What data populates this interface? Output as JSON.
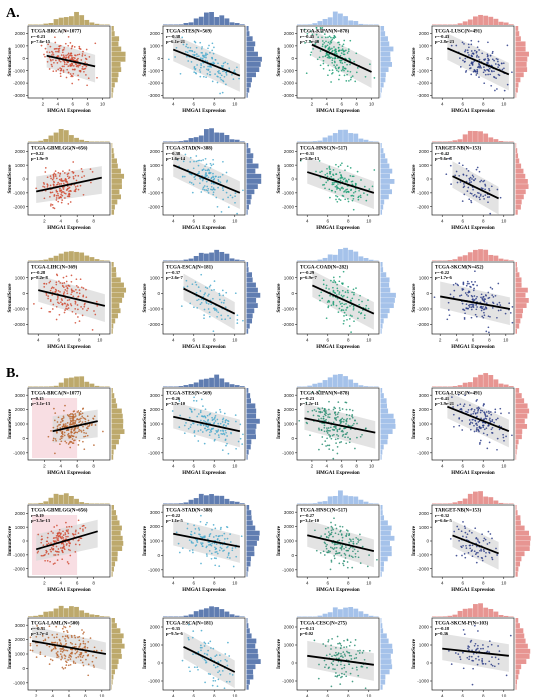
{
  "figure": {
    "panel_labels": [
      "A.",
      "B."
    ],
    "x_label": "HMGA1 Expression",
    "y_labels": {
      "A": "StromalScore",
      "B": "ImmuneScore"
    },
    "colors": {
      "brown": "#b6a05c",
      "blue": "#4f6fa8",
      "teal": "#3fa4c4",
      "green": "#1a9a6e",
      "navy": "#283a7a",
      "red": "#cf4a3a",
      "lightblue": "#9bbbe8",
      "salmon": "#e48a86"
    }
  },
  "chart_data": [
    {
      "panel": "A",
      "type": "scatter",
      "title": "TCGA-BRCA(N=1077)",
      "stats": [
        "r=-0.23",
        "p=7.6e-15"
      ],
      "color": "red",
      "histx": "brown",
      "histy": "brown",
      "xticks": [
        2,
        4,
        6,
        8,
        10
      ],
      "yticks": [
        -3000,
        -2000,
        -1000,
        0,
        1000,
        2000
      ],
      "xlim": [
        0,
        11
      ],
      "ylim": [
        -3200,
        2600
      ],
      "cx": 5.5,
      "sx": 1.6,
      "line": {
        "x": [
          2.5,
          9
        ],
        "y": [
          200,
          -650
        ]
      },
      "spread": 700,
      "n": 200
    },
    {
      "panel": "A",
      "type": "scatter",
      "title": "TCGA-STES(N=569)",
      "stats": [
        "r=-0.38",
        "p=6.1e-21"
      ],
      "color": "teal",
      "histx": "blue",
      "histy": "blue",
      "xticks": [
        4,
        6,
        8,
        10
      ],
      "yticks": [
        -3000,
        -2000,
        -1000,
        0,
        1000,
        2000
      ],
      "xlim": [
        3,
        11
      ],
      "ylim": [
        -3200,
        2600
      ],
      "cx": 7.5,
      "sx": 1.3,
      "line": {
        "x": [
          4,
          10.5
        ],
        "y": [
          700,
          -1400
        ]
      },
      "spread": 700,
      "n": 150
    },
    {
      "panel": "A",
      "type": "scatter",
      "title": "TCGA-KIPAN(N=878)",
      "stats": [
        "r=-0.45",
        "p=7.7e-46"
      ],
      "color": "green",
      "histx": "lightblue",
      "histy": "lightblue",
      "xticks": [
        2,
        4,
        6,
        8,
        10
      ],
      "yticks": [
        -3000,
        -2000,
        -1000,
        0,
        1000,
        2000
      ],
      "xlim": [
        0,
        11
      ],
      "ylim": [
        -3200,
        2600
      ],
      "cx": 5.0,
      "sx": 1.6,
      "line": {
        "x": [
          2,
          10
        ],
        "y": [
          1100,
          -1100
        ]
      },
      "spread": 800,
      "n": 200
    },
    {
      "panel": "A",
      "type": "scatter",
      "title": "TCGA-LUSC(N=491)",
      "stats": [
        "r=-0.43",
        "p=2.8e-23"
      ],
      "color": "navy",
      "histx": "salmon",
      "histy": "salmon",
      "xticks": [
        4,
        6,
        8,
        10
      ],
      "yticks": [
        -3000,
        -2000,
        -1000,
        0,
        1000,
        2000
      ],
      "xlim": [
        3,
        11
      ],
      "ylim": [
        -3200,
        2600
      ],
      "cx": 7.8,
      "sx": 1.2,
      "line": {
        "x": [
          4.5,
          10.5
        ],
        "y": [
          800,
          -1300
        ]
      },
      "spread": 650,
      "n": 150
    },
    {
      "panel": "A",
      "type": "scatter",
      "title": "TCGA-GBMLGG(N=656)",
      "stats": [
        "r=0.22",
        "p=1.9e-9"
      ],
      "color": "red",
      "histx": "brown",
      "histy": "brown",
      "xticks": [
        2,
        4,
        6,
        8
      ],
      "yticks": [
        -2000,
        -1000,
        0,
        1000,
        2000
      ],
      "xlim": [
        0,
        10
      ],
      "ylim": [
        -2600,
        2600
      ],
      "cx": 4.0,
      "sx": 1.3,
      "line": {
        "x": [
          1,
          9
        ],
        "y": [
          -900,
          100
        ]
      },
      "spread": 600,
      "n": 170
    },
    {
      "panel": "A",
      "type": "scatter",
      "title": "TCGA-STAD(N=388)",
      "stats": [
        "r=-0.38",
        "p=1.6e-14"
      ],
      "color": "teal",
      "histx": "blue",
      "histy": "blue",
      "xticks": [
        4,
        6,
        8,
        10
      ],
      "yticks": [
        -2000,
        -1000,
        0,
        1000,
        2000
      ],
      "xlim": [
        3,
        11
      ],
      "ylim": [
        -2600,
        2600
      ],
      "cx": 7.5,
      "sx": 1.3,
      "line": {
        "x": [
          4,
          10.5
        ],
        "y": [
          1000,
          -1000
        ]
      },
      "spread": 700,
      "n": 140
    },
    {
      "panel": "A",
      "type": "scatter",
      "title": "TCGA-HNSC(N=517)",
      "stats": [
        "r=-0.31",
        "p=5.8e-13"
      ],
      "color": "green",
      "histx": "lightblue",
      "histy": "lightblue",
      "xticks": [
        4,
        6,
        8,
        10
      ],
      "yticks": [
        -2000,
        -1000,
        0,
        1000,
        2000
      ],
      "xlim": [
        3,
        11
      ],
      "ylim": [
        -2600,
        2600
      ],
      "cx": 7.3,
      "sx": 1.2,
      "line": {
        "x": [
          4,
          10.5
        ],
        "y": [
          500,
          -1000
        ]
      },
      "spread": 650,
      "n": 150
    },
    {
      "panel": "A",
      "type": "scatter",
      "title": "TARGET-NB(N=153)",
      "stats": [
        "r=-0.42",
        "p=9.6e-8"
      ],
      "color": "navy",
      "histx": "salmon",
      "histy": "salmon",
      "xticks": [
        4,
        6,
        8,
        10
      ],
      "yticks": [
        -2000,
        -1000,
        0,
        1000,
        2000
      ],
      "xlim": [
        3,
        11
      ],
      "ylim": [
        -2600,
        2600
      ],
      "cx": 7.2,
      "sx": 1.1,
      "line": {
        "x": [
          5,
          9.5
        ],
        "y": [
          200,
          -1400
        ]
      },
      "spread": 600,
      "n": 80
    },
    {
      "panel": "A",
      "type": "scatter",
      "title": "TCGA-LIHC(N=369)",
      "stats": [
        "r=-0.28",
        "p=8.2e-8"
      ],
      "color": "red",
      "histx": "brown",
      "histy": "brown",
      "xticks": [
        4,
        6,
        8,
        10
      ],
      "yticks": [
        -2000,
        -1000,
        0,
        1000
      ],
      "xlim": [
        3,
        11
      ],
      "ylim": [
        -2600,
        2000
      ],
      "cx": 7.0,
      "sx": 1.3,
      "line": {
        "x": [
          4,
          10.5
        ],
        "y": [
          200,
          -800
        ]
      },
      "spread": 650,
      "n": 140
    },
    {
      "panel": "A",
      "type": "scatter",
      "title": "TCGA-ESCA(N=181)",
      "stats": [
        "r=-0.37",
        "p=2.6e-7"
      ],
      "color": "teal",
      "histx": "blue",
      "histy": "blue",
      "xticks": [
        4,
        6,
        8,
        10
      ],
      "yticks": [
        -2000,
        -1000,
        0,
        1000
      ],
      "xlim": [
        3,
        11
      ],
      "ylim": [
        -2600,
        2000
      ],
      "cx": 7.6,
      "sx": 1.2,
      "line": {
        "x": [
          5,
          10
        ],
        "y": [
          300,
          -1300
        ]
      },
      "spread": 650,
      "n": 80
    },
    {
      "panel": "A",
      "type": "scatter",
      "title": "TCGA-COAD(N=282)",
      "stats": [
        "r=-0.29",
        "p=6.9e-7"
      ],
      "color": "green",
      "histx": "lightblue",
      "histy": "lightblue",
      "xticks": [
        4,
        6,
        8,
        10
      ],
      "yticks": [
        -2000,
        -1000,
        0,
        1000
      ],
      "xlim": [
        3,
        11
      ],
      "ylim": [
        -2600,
        2000
      ],
      "cx": 7.5,
      "sx": 1.2,
      "line": {
        "x": [
          4.5,
          10.5
        ],
        "y": [
          500,
          -1300
        ]
      },
      "spread": 650,
      "n": 120
    },
    {
      "panel": "A",
      "type": "scatter",
      "title": "TCGA-SKCM(N=452)",
      "stats": [
        "r=-0.22",
        "p=1.7e-6"
      ],
      "color": "navy",
      "histx": "salmon",
      "histy": "salmon",
      "xticks": [
        2,
        4,
        6,
        8,
        10
      ],
      "yticks": [
        -2000,
        -1000,
        0,
        1000
      ],
      "xlim": [
        1,
        11
      ],
      "ylim": [
        -2600,
        2000
      ],
      "cx": 6.5,
      "sx": 1.6,
      "line": {
        "x": [
          2,
          10.5
        ],
        "y": [
          -200,
          -1000
        ]
      },
      "spread": 650,
      "n": 150
    },
    {
      "panel": "B",
      "type": "scatter",
      "title": "TCGA-BRCA(N=1077)",
      "stats": [
        "r=0.15",
        "p=3.1e-13"
      ],
      "color": "brown2",
      "histx": "brown",
      "histy": "brown",
      "xticks": [
        2,
        4,
        6,
        8
      ],
      "yticks": [
        -1000,
        0,
        1000,
        2000,
        3000
      ],
      "xlim": [
        0,
        10
      ],
      "ylim": [
        -1500,
        3500
      ],
      "cx": 5.5,
      "sx": 1.2,
      "line": {
        "x": [
          3,
          8.5
        ],
        "y": [
          500,
          1200
        ]
      },
      "spread": 600,
      "n": 220,
      "shade": "pink"
    },
    {
      "panel": "B",
      "type": "scatter",
      "title": "TCGA-STES(N=569)",
      "stats": [
        "r=-0.26",
        "p=3.7e-10"
      ],
      "color": "teal",
      "histx": "blue",
      "histy": "blue",
      "xticks": [
        4,
        6,
        8,
        10
      ],
      "yticks": [
        -1000,
        0,
        1000,
        2000,
        3000
      ],
      "xlim": [
        3,
        11
      ],
      "ylim": [
        -1500,
        3500
      ],
      "cx": 7.5,
      "sx": 1.3,
      "line": {
        "x": [
          4,
          10.5
        ],
        "y": [
          1500,
          500
        ]
      },
      "spread": 600,
      "n": 150
    },
    {
      "panel": "B",
      "type": "scatter",
      "title": "TCGA-KIPAN(N=878)",
      "stats": [
        "r=-0.23",
        "p=1.2e-11"
      ],
      "color": "green2",
      "histx": "lightblue",
      "histy": "lightblue",
      "xticks": [
        2,
        4,
        6,
        8,
        10
      ],
      "yticks": [
        -1000,
        0,
        1000,
        2000,
        3000
      ],
      "xlim": [
        0,
        11
      ],
      "ylim": [
        -1500,
        3500
      ],
      "cx": 5.0,
      "sx": 1.7,
      "line": {
        "x": [
          1,
          10.5
        ],
        "y": [
          1400,
          400
        ]
      },
      "spread": 700,
      "n": 200
    },
    {
      "panel": "B",
      "type": "scatter",
      "title": "TCGA-LUSC(N=491)",
      "stats": [
        "r=-0.41",
        "p=3.9e-21"
      ],
      "color": "navy",
      "histx": "salmon",
      "histy": "salmon",
      "xticks": [
        4,
        6,
        8,
        10
      ],
      "yticks": [
        -1000,
        0,
        1000,
        2000,
        3000
      ],
      "xlim": [
        3,
        11
      ],
      "ylim": [
        -1500,
        3500
      ],
      "cx": 7.8,
      "sx": 1.2,
      "line": {
        "x": [
          4.5,
          10.5
        ],
        "y": [
          2200,
          500
        ]
      },
      "spread": 650,
      "n": 150
    },
    {
      "panel": "B",
      "type": "scatter",
      "title": "TCGA-GBMLGG(N=656)",
      "stats": [
        "r=0.19",
        "p=3.5e-13"
      ],
      "color": "red",
      "histx": "brown",
      "histy": "brown",
      "xticks": [
        2,
        4,
        6,
        8
      ],
      "yticks": [
        -2000,
        -1000,
        0,
        1000,
        2000
      ],
      "xlim": [
        0,
        10
      ],
      "ylim": [
        -2600,
        2600
      ],
      "cx": 4.0,
      "sx": 1.3,
      "line": {
        "x": [
          1,
          8.5
        ],
        "y": [
          -600,
          700
        ]
      },
      "spread": 600,
      "n": 170,
      "shade": "pink"
    },
    {
      "panel": "B",
      "type": "scatter",
      "title": "TCGA-STAD(N=388)",
      "stats": [
        "r=-0.22",
        "p=1.1e-5"
      ],
      "color": "teal",
      "histx": "blue",
      "histy": "blue",
      "xticks": [
        4,
        6,
        8,
        10
      ],
      "yticks": [
        -1000,
        0,
        1000,
        2000,
        3000
      ],
      "xlim": [
        3,
        11
      ],
      "ylim": [
        -1500,
        3500
      ],
      "cx": 7.5,
      "sx": 1.3,
      "line": {
        "x": [
          4,
          10.5
        ],
        "y": [
          1500,
          600
        ]
      },
      "spread": 650,
      "n": 130
    },
    {
      "panel": "B",
      "type": "scatter",
      "title": "TCGA-HNSC(N=517)",
      "stats": [
        "r=-0.27",
        "p=3.1e-10"
      ],
      "color": "green2",
      "histx": "lightblue",
      "histy": "lightblue",
      "xticks": [
        4,
        6,
        8,
        10
      ],
      "yticks": [
        -1000,
        0,
        1000,
        2000,
        3000
      ],
      "xlim": [
        3,
        11
      ],
      "ylim": [
        -1500,
        3500
      ],
      "cx": 7.3,
      "sx": 1.2,
      "line": {
        "x": [
          4,
          10.5
        ],
        "y": [
          1400,
          300
        ]
      },
      "spread": 650,
      "n": 150
    },
    {
      "panel": "B",
      "type": "scatter",
      "title": "TARGET-NB(N=153)",
      "stats": [
        "r=-0.32",
        "p=6.6e-5"
      ],
      "color": "navy",
      "histx": "salmon",
      "histy": "salmon",
      "xticks": [
        4,
        6,
        8,
        10
      ],
      "yticks": [
        -2000,
        -1000,
        0,
        1000,
        2000
      ],
      "xlim": [
        3,
        11
      ],
      "ylim": [
        -2600,
        2600
      ],
      "cx": 7.2,
      "sx": 1.1,
      "line": {
        "x": [
          5,
          9.5
        ],
        "y": [
          400,
          -900
        ]
      },
      "spread": 600,
      "n": 80
    },
    {
      "panel": "B",
      "type": "scatter",
      "title": "TCGA-LAML(N=500)",
      "stats": [
        "r=-0.31",
        "p=3.7e-4"
      ],
      "color": "brown2",
      "histx": "brown",
      "histy": "brown",
      "xticks": [
        2,
        4,
        6,
        8,
        10
      ],
      "yticks": [
        -1000,
        0,
        1000,
        2000,
        3000
      ],
      "xlim": [
        1,
        11
      ],
      "ylim": [
        -1500,
        3500
      ],
      "cx": 5.5,
      "sx": 1.9,
      "line": {
        "x": [
          1.5,
          10.5
        ],
        "y": [
          1900,
          1000
        ]
      },
      "spread": 650,
      "n": 200
    },
    {
      "panel": "B",
      "type": "scatter",
      "title": "TCGA-ESCA(N=181)",
      "stats": [
        "r=-0.35",
        "p=9.5e-6"
      ],
      "color": "teal",
      "histx": "blue",
      "histy": "blue",
      "xticks": [
        4,
        6,
        8,
        10
      ],
      "yticks": [
        -1000,
        0,
        1000,
        2000
      ],
      "xlim": [
        3,
        11
      ],
      "ylim": [
        -1500,
        2500
      ],
      "cx": 7.6,
      "sx": 1.2,
      "line": {
        "x": [
          5,
          10
        ],
        "y": [
          900,
          -500
        ]
      },
      "spread": 550,
      "n": 80
    },
    {
      "panel": "B",
      "type": "scatter",
      "title": "TCGA-CESC(N=275)",
      "stats": [
        "r=-0.13",
        "p=0.02"
      ],
      "color": "green2",
      "histx": "lightblue",
      "histy": "lightblue",
      "xticks": [
        4,
        6,
        8,
        10
      ],
      "yticks": [
        -1000,
        0,
        1000,
        2000
      ],
      "xlim": [
        3,
        11
      ],
      "ylim": [
        -1500,
        2500
      ],
      "cx": 7.5,
      "sx": 1.2,
      "line": {
        "x": [
          4,
          10.5
        ],
        "y": [
          400,
          -100
        ]
      },
      "spread": 600,
      "n": 120
    },
    {
      "panel": "B",
      "type": "scatter",
      "title": "TCGA-SKCM-P(N=103)",
      "stats": [
        "r=-0.18",
        "p=0.36"
      ],
      "color": "navy",
      "histx": "salmon",
      "histy": "salmon",
      "xticks": [
        4,
        6,
        8,
        10
      ],
      "yticks": [
        -1000,
        0,
        1000,
        2000
      ],
      "xlim": [
        3,
        11
      ],
      "ylim": [
        -1500,
        2500
      ],
      "cx": 7.2,
      "sx": 1.3,
      "line": {
        "x": [
          4,
          10.5
        ],
        "y": [
          800,
          400
        ]
      },
      "spread": 600,
      "n": 70
    }
  ]
}
